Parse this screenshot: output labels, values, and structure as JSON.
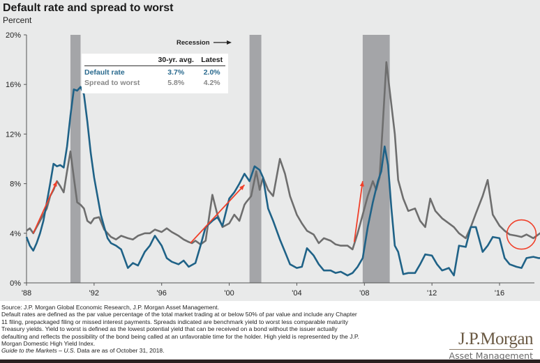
{
  "header": {
    "title": "Default rate and spread to worst",
    "subtitle": "Percent"
  },
  "legend_table": {
    "columns": [
      "",
      "30-yr. avg.",
      "Latest"
    ],
    "rows": [
      {
        "label": "Default rate",
        "avg": "3.7%",
        "latest": "2.0%",
        "color": "#1f6287"
      },
      {
        "label": "Spread to worst",
        "avg": "5.8%",
        "latest": "4.2%",
        "color": "#8a8a8a"
      }
    ]
  },
  "recession_label": "Recession",
  "footnotes": {
    "source": "Source: J.P. Morgan Global Economic Research, J.P. Morgan Asset Management.",
    "definition": "Default rates are defined as the par value percentage of the total market trading at or below 50% of par value and include any Chapter 11 filing, prepackaged filing or missed interest payments. Spreads indicated are benchmark yield to worst less comparable maturity Treasury yields. Yield to worst is defined as the lowest potential yield that can be received on a bond without the issuer actually defaulting and reflects the possibility of the bond being called at an unfavorable time for the holder. High yield is represented by the J.P. Morgan Domestic High Yield Index.",
    "guide_italic": "Guide to the Markets – U.S.",
    "guide_rest": " Data are as of October 31, 2018."
  },
  "logo": {
    "brand": "J.P.Morgan",
    "sub": "Asset Management"
  },
  "colors": {
    "default_rate": "#1f6287",
    "spread": "#6e6e6e",
    "recession": "#a4a5a8",
    "annotation": "#f0402a",
    "panel": "#e9eaea"
  },
  "chart_data": {
    "type": "line",
    "title": "Default rate and spread to worst",
    "ylabel": "Percent",
    "xlabel": "",
    "xlim": [
      1988,
      2018.5
    ],
    "ylim": [
      0,
      20
    ],
    "x_ticks": [
      1988,
      1992,
      1996,
      2000,
      2004,
      2008,
      2012,
      2016
    ],
    "x_tick_labels": [
      "'88",
      "'92",
      "'96",
      "'00",
      "'04",
      "'08",
      "'12",
      "'16"
    ],
    "y_ticks": [
      0,
      4,
      8,
      12,
      16,
      20
    ],
    "y_tick_labels": [
      "0%",
      "4%",
      "8%",
      "12%",
      "16%",
      "20%"
    ],
    "grid": false,
    "recessions": [
      [
        1990.6,
        1991.2
      ],
      [
        2001.2,
        2001.9
      ],
      [
        2007.9,
        2009.5
      ]
    ],
    "series": [
      {
        "name": "Default rate",
        "x": [
          1988.0,
          1988.2,
          1988.4,
          1988.6,
          1988.8,
          1989.0,
          1989.2,
          1989.4,
          1989.6,
          1989.8,
          1990.0,
          1990.2,
          1990.4,
          1990.6,
          1990.8,
          1991.0,
          1991.2,
          1991.4,
          1991.6,
          1991.8,
          1992.0,
          1992.2,
          1992.4,
          1992.6,
          1992.8,
          1993.0,
          1993.3,
          1993.6,
          1994.0,
          1994.3,
          1994.6,
          1995.0,
          1995.3,
          1995.6,
          1996.0,
          1996.3,
          1996.6,
          1997.0,
          1997.3,
          1997.6,
          1998.0,
          1998.3,
          1998.6,
          1999.0,
          1999.3,
          1999.6,
          2000.0,
          2000.3,
          2000.6,
          2000.9,
          2001.2,
          2001.5,
          2001.8,
          2002.0,
          2002.3,
          2002.6,
          2003.0,
          2003.3,
          2003.6,
          2004.0,
          2004.3,
          2004.6,
          2005.0,
          2005.3,
          2005.6,
          2006.0,
          2006.3,
          2006.6,
          2007.0,
          2007.3,
          2007.6,
          2007.9,
          2008.2,
          2008.5,
          2008.8,
          2009.0,
          2009.2,
          2009.4,
          2009.6,
          2009.8,
          2010.0,
          2010.3,
          2010.6,
          2011.0,
          2011.3,
          2011.6,
          2012.0,
          2012.3,
          2012.6,
          2013.0,
          2013.3,
          2013.6,
          2014.0,
          2014.3,
          2014.6,
          2015.0,
          2015.3,
          2015.6,
          2016.0,
          2016.3,
          2016.6,
          2017.0,
          2017.3,
          2017.6,
          2018.0,
          2018.3,
          2018.6
        ],
        "values": [
          3.7,
          3.0,
          2.6,
          3.2,
          4.0,
          5.0,
          6.5,
          8.0,
          9.6,
          9.4,
          9.5,
          9.3,
          11.0,
          13.5,
          15.6,
          15.5,
          15.8,
          15.2,
          13.0,
          10.5,
          8.5,
          7.0,
          5.5,
          4.5,
          3.6,
          3.2,
          3.0,
          2.7,
          1.2,
          1.6,
          1.4,
          2.5,
          3.0,
          3.8,
          3.0,
          2.0,
          1.7,
          1.5,
          1.8,
          1.3,
          1.6,
          3.0,
          4.5,
          5.0,
          5.3,
          4.6,
          6.8,
          7.3,
          8.0,
          8.8,
          8.2,
          9.4,
          9.1,
          8.5,
          6.0,
          5.0,
          3.5,
          2.5,
          1.5,
          1.2,
          1.3,
          2.8,
          2.2,
          1.5,
          1.0,
          1.0,
          0.8,
          0.9,
          0.6,
          0.8,
          1.3,
          2.0,
          4.5,
          6.5,
          8.2,
          9.0,
          11.0,
          9.5,
          6.0,
          3.0,
          2.5,
          0.7,
          0.8,
          0.8,
          1.5,
          2.3,
          2.2,
          1.5,
          1.0,
          1.2,
          0.6,
          3.0,
          2.9,
          4.5,
          4.5,
          2.5,
          3.0,
          3.7,
          3.6,
          2.0,
          1.5,
          1.3,
          1.2,
          2.0,
          2.1,
          2.0,
          2.0
        ]
      },
      {
        "name": "Spread to worst",
        "x": [
          1988.0,
          1988.2,
          1988.4,
          1988.6,
          1988.8,
          1989.0,
          1989.2,
          1989.4,
          1989.6,
          1989.8,
          1990.0,
          1990.2,
          1990.4,
          1990.6,
          1990.8,
          1991.0,
          1991.2,
          1991.4,
          1991.6,
          1991.8,
          1992.0,
          1992.3,
          1992.6,
          1993.0,
          1993.3,
          1993.6,
          1994.0,
          1994.3,
          1994.6,
          1995.0,
          1995.3,
          1995.6,
          1996.0,
          1996.3,
          1996.6,
          1997.0,
          1997.3,
          1997.6,
          1997.8,
          1998.0,
          1998.3,
          1998.6,
          1999.0,
          1999.3,
          1999.6,
          2000.0,
          2000.3,
          2000.6,
          2000.9,
          2001.0,
          2001.3,
          2001.6,
          2001.8,
          2002.0,
          2002.3,
          2002.6,
          2003.0,
          2003.3,
          2003.6,
          2004.0,
          2004.3,
          2004.6,
          2005.0,
          2005.3,
          2005.6,
          2006.0,
          2006.3,
          2006.6,
          2007.0,
          2007.3,
          2007.6,
          2007.9,
          2008.2,
          2008.5,
          2008.7,
          2008.9,
          2009.1,
          2009.3,
          2009.5,
          2009.8,
          2010.0,
          2010.3,
          2010.6,
          2011.0,
          2011.3,
          2011.6,
          2011.9,
          2012.2,
          2012.6,
          2013.0,
          2013.3,
          2013.6,
          2014.0,
          2014.3,
          2014.6,
          2015.0,
          2015.3,
          2015.6,
          2016.0,
          2016.3,
          2016.6,
          2017.0,
          2017.3,
          2017.6,
          2018.0,
          2018.3,
          2018.6
        ],
        "values": [
          4.2,
          4.4,
          4.0,
          4.5,
          5.0,
          5.5,
          6.0,
          7.0,
          7.5,
          8.2,
          7.8,
          7.3,
          9.0,
          10.6,
          8.5,
          6.5,
          6.3,
          6.0,
          5.0,
          4.8,
          5.2,
          5.3,
          4.3,
          3.7,
          3.5,
          3.8,
          3.6,
          3.5,
          3.8,
          4.0,
          4.0,
          4.3,
          4.1,
          4.4,
          4.1,
          3.8,
          3.5,
          3.3,
          3.2,
          3.4,
          3.1,
          3.4,
          7.1,
          5.5,
          4.5,
          4.8,
          5.5,
          5.0,
          6.3,
          6.5,
          7.0,
          9.0,
          7.5,
          8.5,
          7.5,
          7.0,
          10.0,
          8.8,
          7.0,
          5.5,
          4.8,
          4.2,
          3.9,
          3.2,
          3.6,
          3.4,
          3.1,
          3.0,
          3.0,
          2.7,
          4.0,
          5.5,
          7.0,
          8.2,
          7.5,
          8.5,
          13.0,
          17.8,
          15.5,
          12.0,
          8.3,
          6.8,
          5.8,
          6.0,
          5.0,
          4.5,
          6.8,
          5.8,
          5.2,
          4.8,
          4.5,
          4.0,
          3.6,
          4.5,
          5.6,
          7.0,
          8.3,
          5.5,
          4.6,
          4.2,
          3.9,
          3.8,
          3.7,
          3.9,
          3.6,
          3.9,
          4.2
        ]
      }
    ],
    "annotations": [
      {
        "type": "arrow",
        "from": [
          1988.4,
          4.0
        ],
        "to": [
          1989.8,
          8.2
        ]
      },
      {
        "type": "arrow",
        "from": [
          1997.7,
          3.2
        ],
        "to": [
          2000.9,
          7.9
        ]
      },
      {
        "type": "arrow",
        "from": [
          2007.4,
          3.3
        ],
        "to": [
          2007.9,
          8.2
        ]
      },
      {
        "type": "circle",
        "center": [
          2017.3,
          3.9
        ]
      }
    ]
  }
}
